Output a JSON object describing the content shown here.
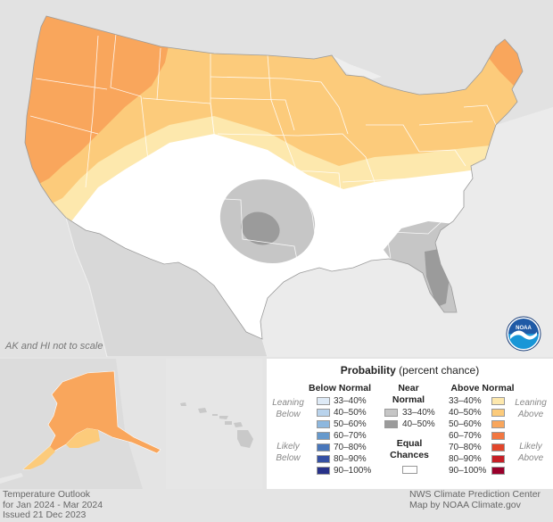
{
  "map": {
    "note": "AK and HI not to scale",
    "logo_text": "NOAA"
  },
  "legend": {
    "title_bold": "Probability",
    "title_rest": " (percent chance)",
    "below_header": "Below Normal",
    "near_header_1": "Near",
    "near_header_2": "Normal",
    "above_header": "Above Normal",
    "leaning_below_1": "Leaning",
    "leaning_below_2": "Below",
    "likely_below_1": "Likely",
    "likely_below_2": "Below",
    "leaning_above_1": "Leaning",
    "leaning_above_2": "Above",
    "likely_above_1": "Likely",
    "likely_above_2": "Above",
    "equal_1": "Equal",
    "equal_2": "Chances",
    "below": [
      {
        "label": "33–40%",
        "color": "#deeaf6"
      },
      {
        "label": "40–50%",
        "color": "#b9d3ec"
      },
      {
        "label": "50–60%",
        "color": "#8db7de"
      },
      {
        "label": "60–70%",
        "color": "#6699cc"
      },
      {
        "label": "70–80%",
        "color": "#4977bb"
      },
      {
        "label": "80–90%",
        "color": "#3550a3"
      },
      {
        "label": "90–100%",
        "color": "#283289"
      }
    ],
    "near": [
      {
        "label": "33–40%",
        "color": "#c6c6c6"
      },
      {
        "label": "40–50%",
        "color": "#9b9b9b"
      }
    ],
    "above": [
      {
        "label": "33–40%",
        "color": "#fde8ad"
      },
      {
        "label": "40–50%",
        "color": "#fccb7b"
      },
      {
        "label": "50–60%",
        "color": "#f9a65c"
      },
      {
        "label": "60–70%",
        "color": "#f27741"
      },
      {
        "label": "70–80%",
        "color": "#e2462b"
      },
      {
        "label": "80–90%",
        "color": "#c71f26"
      },
      {
        "label": "90–100%",
        "color": "#99002b"
      }
    ],
    "equal_color": "#ffffff"
  },
  "footer": {
    "left_1": "Temperature Outlook",
    "left_2": "for Jan 2024 - Mar 2024",
    "left_3": "Issued 21 Dec 2023",
    "right_1": "NWS Climate Prediction Center",
    "right_2": "Map by NOAA Climate.gov"
  }
}
